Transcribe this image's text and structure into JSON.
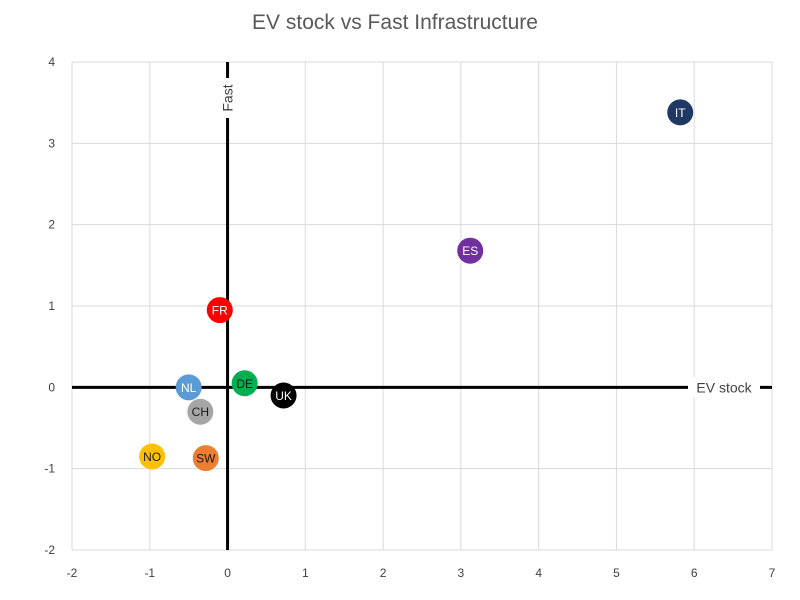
{
  "chart_data": {
    "type": "scatter",
    "title": "EV stock vs Fast  Infrastructure",
    "xlabel": "EV stock",
    "ylabel": "Fast",
    "xlim": [
      -2,
      7
    ],
    "ylim": [
      -2,
      4
    ],
    "xticks": [
      "-2",
      "-1",
      "0",
      "1",
      "2",
      "3",
      "4",
      "5",
      "6",
      "7"
    ],
    "yticks": [
      "-2",
      "-1",
      "0",
      "1",
      "2",
      "3",
      "4"
    ],
    "grid": true,
    "points": [
      {
        "label": "IT",
        "x": 5.82,
        "y": 3.38,
        "color": "#203864",
        "text_color": "#ffffff"
      },
      {
        "label": "ES",
        "x": 3.12,
        "y": 1.68,
        "color": "#7030a0",
        "text_color": "#ffffff"
      },
      {
        "label": "FR",
        "x": -0.1,
        "y": 0.95,
        "color": "#ff0000",
        "text_color": "#ffffff"
      },
      {
        "label": "DE",
        "x": 0.22,
        "y": 0.05,
        "color": "#00b050",
        "text_color": "#1a1a1a"
      },
      {
        "label": "NL",
        "x": -0.5,
        "y": 0.0,
        "color": "#5b9bd5",
        "text_color": "#ffffff"
      },
      {
        "label": "UK",
        "x": 0.72,
        "y": -0.1,
        "color": "#000000",
        "text_color": "#ffffff"
      },
      {
        "label": "CH",
        "x": -0.35,
        "y": -0.3,
        "color": "#a6a6a6",
        "text_color": "#1a1a1a"
      },
      {
        "label": "NO",
        "x": -0.97,
        "y": -0.85,
        "color": "#ffc000",
        "text_color": "#1a1a1a"
      },
      {
        "label": "SW",
        "x": -0.28,
        "y": -0.87,
        "color": "#ed7d31",
        "text_color": "#1a1a1a"
      }
    ]
  }
}
